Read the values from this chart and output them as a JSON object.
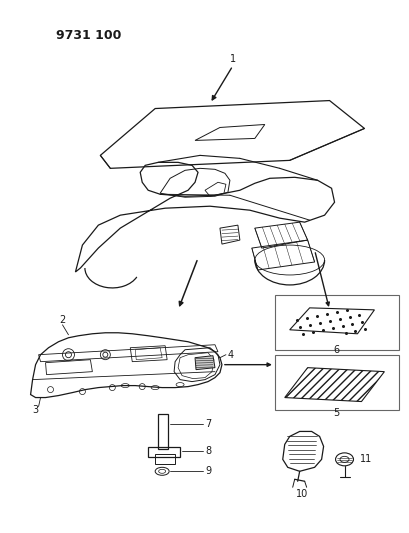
{
  "title": "9731 100",
  "bg": "#ffffff",
  "lc": "#1a1a1a",
  "figsize": [
    4.1,
    5.33
  ],
  "dpi": 100
}
